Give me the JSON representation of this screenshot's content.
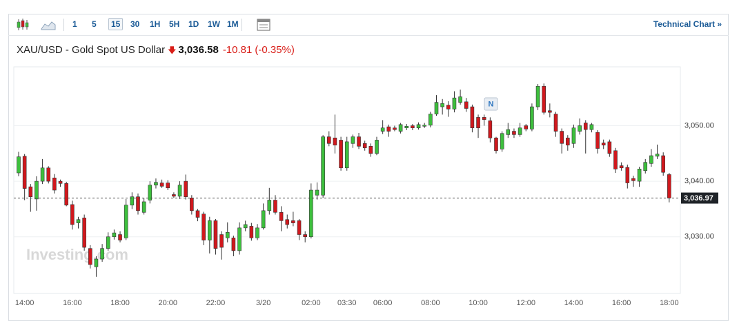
{
  "toolbar": {
    "intervals": [
      "1",
      "5",
      "15",
      "30",
      "1H",
      "5H",
      "1D",
      "1W",
      "1M"
    ],
    "selected": 2,
    "technical_chart": "Technical Chart »"
  },
  "header": {
    "instrument": "XAU/USD - Gold Spot US Dollar",
    "price": "3,036.58",
    "change": "-10.81",
    "change_pct": "(-0.35%)"
  },
  "chart_data": {
    "type": "candlestick",
    "watermark": "Investing.com",
    "news_marker": "N",
    "up_color": "#3dbf3d",
    "down_color": "#d0181d",
    "grid": true,
    "ylim": [
      3019.8,
      3060.6
    ],
    "yticks": [
      {
        "value": 3030,
        "label": "3,030.00"
      },
      {
        "value": 3040,
        "label": "3,040.00"
      },
      {
        "value": 3050,
        "label": "3,050.00"
      }
    ],
    "price_line": {
      "value": 3036.97,
      "label": "3,036.97"
    },
    "categories": [
      null,
      "14:00",
      null,
      null,
      null,
      null,
      null,
      null,
      null,
      "16:00",
      null,
      null,
      null,
      null,
      null,
      null,
      null,
      "18:00",
      null,
      null,
      null,
      null,
      null,
      null,
      null,
      "20:00",
      null,
      null,
      null,
      null,
      null,
      null,
      null,
      "22:00",
      null,
      null,
      null,
      null,
      null,
      null,
      null,
      "3/20",
      null,
      null,
      null,
      null,
      null,
      null,
      null,
      "02:00",
      null,
      null,
      null,
      null,
      null,
      "03:30",
      null,
      null,
      null,
      null,
      null,
      "06:00",
      null,
      null,
      null,
      null,
      null,
      null,
      null,
      "08:00",
      null,
      null,
      null,
      null,
      null,
      null,
      null,
      "10:00",
      null,
      null,
      null,
      null,
      null,
      null,
      null,
      "12:00",
      null,
      null,
      null,
      null,
      null,
      null,
      null,
      "14:00",
      null,
      null,
      null,
      null,
      null,
      null,
      null,
      "16:00",
      null,
      null,
      null,
      null,
      null,
      null,
      null,
      "18:00"
    ],
    "open": [
      3041.5,
      3044.5,
      3039,
      3036.8,
      3040,
      3042.4,
      3040.6,
      3040,
      3039.6,
      3035.8,
      3032.5,
      3033.4,
      3027.9,
      3024.6,
      3026,
      3027.9,
      3030,
      3030.4,
      3029.8,
      3035.7,
      3037.2,
      3034.4,
      3036.6,
      3039.3,
      3039.7,
      3039.7,
      3037.6,
      3037.3,
      3040,
      3037,
      3034.7,
      3034.1,
      3029.4,
      3032.9,
      3030.4,
      3029.8,
      3029.8,
      3027.5,
      3031.6,
      3031.9,
      3029.8,
      3031.6,
      3034.7,
      3036.6,
      3034.4,
      3033.1,
      3032.9,
      3032.9,
      3030.4,
      3030,
      3037.5,
      3037.5,
      3048,
      3047.8,
      3047.4,
      3042.4,
      3046.8,
      3048,
      3046.8,
      3046.3,
      3045,
      3049,
      3049.8,
      3049.6,
      3049,
      3049.6,
      3050,
      3049.6,
      3049.9,
      3050.1,
      3052.1,
      3053.4,
      3053.7,
      3053,
      3054.2,
      3054.3,
      3053.4,
      3051.5,
      3051.5,
      3050.9,
      3047.8,
      3045.8,
      3048.4,
      3049,
      3048.4,
      3050,
      3049.4,
      3053.4,
      3057.1,
      3052.7,
      3052.1,
      3049,
      3047.8,
      3046.8,
      3049,
      3050.5,
      3049.3,
      3048.8,
      3046.9,
      3047.1,
      3045.5,
      3042.8,
      3042.5,
      3040.5,
      3040,
      3041.9,
      3043.2,
      3044.5,
      3044.6,
      3041.2
    ],
    "high": [
      3045.3,
      3044.9,
      3039.5,
      3040.9,
      3044,
      3042.7,
      3041.3,
      3040.3,
      3039.9,
      3036.5,
      3033.6,
      3034,
      3028.5,
      3026.5,
      3028.7,
      3030.8,
      3031.3,
      3031,
      3036.8,
      3038,
      3037.8,
      3037,
      3040,
      3040.5,
      3040.3,
      3040.2,
      3038,
      3040,
      3041.2,
      3037.5,
      3035,
      3034.5,
      3033.6,
      3033.2,
      3031,
      3032.6,
      3030.2,
      3032.6,
      3032.9,
      3032.5,
      3032.3,
      3036,
      3038.8,
      3037.5,
      3035.5,
      3034,
      3034.5,
      3033.2,
      3031,
      3039.6,
      3039.8,
      3048.3,
      3049,
      3052,
      3048,
      3048,
      3048.4,
      3048.7,
      3047.3,
      3046.8,
      3048,
      3051,
      3050.2,
      3050,
      3050.5,
      3050.3,
      3050.3,
      3050.6,
      3050.5,
      3052.5,
      3055.5,
      3054.8,
      3054.4,
      3056.2,
      3056.5,
      3055,
      3053.8,
      3052,
      3052,
      3051.5,
      3048,
      3049,
      3050.5,
      3049.5,
      3050.5,
      3050.3,
      3054,
      3057.5,
      3057.6,
      3054,
      3052.5,
      3049.5,
      3048.3,
      3050.2,
      3051.3,
      3051,
      3050.5,
      3049.2,
      3047.5,
      3047.5,
      3046,
      3043.4,
      3043,
      3041,
      3042.6,
      3044,
      3045.8,
      3046.6,
      3045.2,
      3041.5
    ],
    "low": [
      3040.9,
      3036.6,
      3034.5,
      3034.7,
      3039.5,
      3039.6,
      3037.8,
      3039,
      3035.5,
      3031.3,
      3031.5,
      3027.5,
      3024.3,
      3022.8,
      3025.5,
      3027.5,
      3029.5,
      3029,
      3029.4,
      3035,
      3034,
      3034,
      3036,
      3038.7,
      3038.8,
      3038.4,
      3037,
      3036.8,
      3036.7,
      3034,
      3032.8,
      3028.5,
      3027,
      3026.8,
      3025.9,
      3029,
      3026.5,
      3026.8,
      3031,
      3029.3,
      3029.4,
      3031.3,
      3034,
      3034,
      3031,
      3031.5,
      3031.9,
      3029.4,
      3029,
      3029.7,
      3036.7,
      3037,
      3046.3,
      3045,
      3041.9,
      3041.9,
      3046,
      3045.8,
      3045.5,
      3044.4,
      3044.7,
      3048.5,
      3048,
      3049,
      3048.6,
      3049.2,
      3049.2,
      3049.3,
      3049.6,
      3049.7,
      3051.8,
      3052,
      3051.6,
      3052.4,
      3053.8,
      3052.5,
      3048.8,
      3047.8,
      3050,
      3047,
      3045,
      3045.3,
      3047.8,
      3047.8,
      3048,
      3049,
      3049,
      3052.8,
      3052,
      3051.5,
      3048,
      3045,
      3045.5,
      3046,
      3048.4,
      3045,
      3048.8,
      3045,
      3045.8,
      3044.4,
      3041.5,
      3041.9,
      3038.7,
      3039,
      3039,
      3041.4,
      3042.6,
      3044,
      3041,
      3036.2
    ],
    "close": [
      3044.4,
      3038.7,
      3037.2,
      3040,
      3042.4,
      3040,
      3038.4,
      3039.6,
      3035.7,
      3032.2,
      3033.1,
      3028.1,
      3025,
      3026,
      3027.9,
      3030,
      3030.7,
      3029.4,
      3035.7,
      3037.2,
      3034.7,
      3036.3,
      3039.3,
      3039.8,
      3039.1,
      3038.8,
      3037.3,
      3039.3,
      3037.2,
      3034.7,
      3033.5,
      3029.4,
      3032.9,
      3027.9,
      3028.1,
      3030.8,
      3027.5,
      3031.6,
      3032.2,
      3029.8,
      3031.6,
      3034.7,
      3036.6,
      3034.4,
      3032.9,
      3032.2,
      3032.5,
      3030.4,
      3030,
      3038.4,
      3038.4,
      3048,
      3046.8,
      3046.5,
      3042.4,
      3047.1,
      3048,
      3046.3,
      3046,
      3045,
      3047.4,
      3049.6,
      3049,
      3049.3,
      3050.2,
      3049.9,
      3049.6,
      3050.2,
      3050.1,
      3052.1,
      3054.2,
      3054,
      3053,
      3055,
      3055.2,
      3053.1,
      3049.6,
      3049.6,
      3051.1,
      3047.8,
      3045.5,
      3048.6,
      3049.3,
      3048.4,
      3049.6,
      3049.4,
      3053.4,
      3057.1,
      3052.4,
      3052.4,
      3049,
      3046.8,
      3046.5,
      3049.6,
      3050,
      3049.3,
      3050.2,
      3045.9,
      3046.5,
      3045,
      3042.2,
      3042.4,
      3039.7,
      3040.1,
      3042.2,
      3043.4,
      3044.6,
      3044.9,
      3041.6,
      3036.97
    ]
  }
}
